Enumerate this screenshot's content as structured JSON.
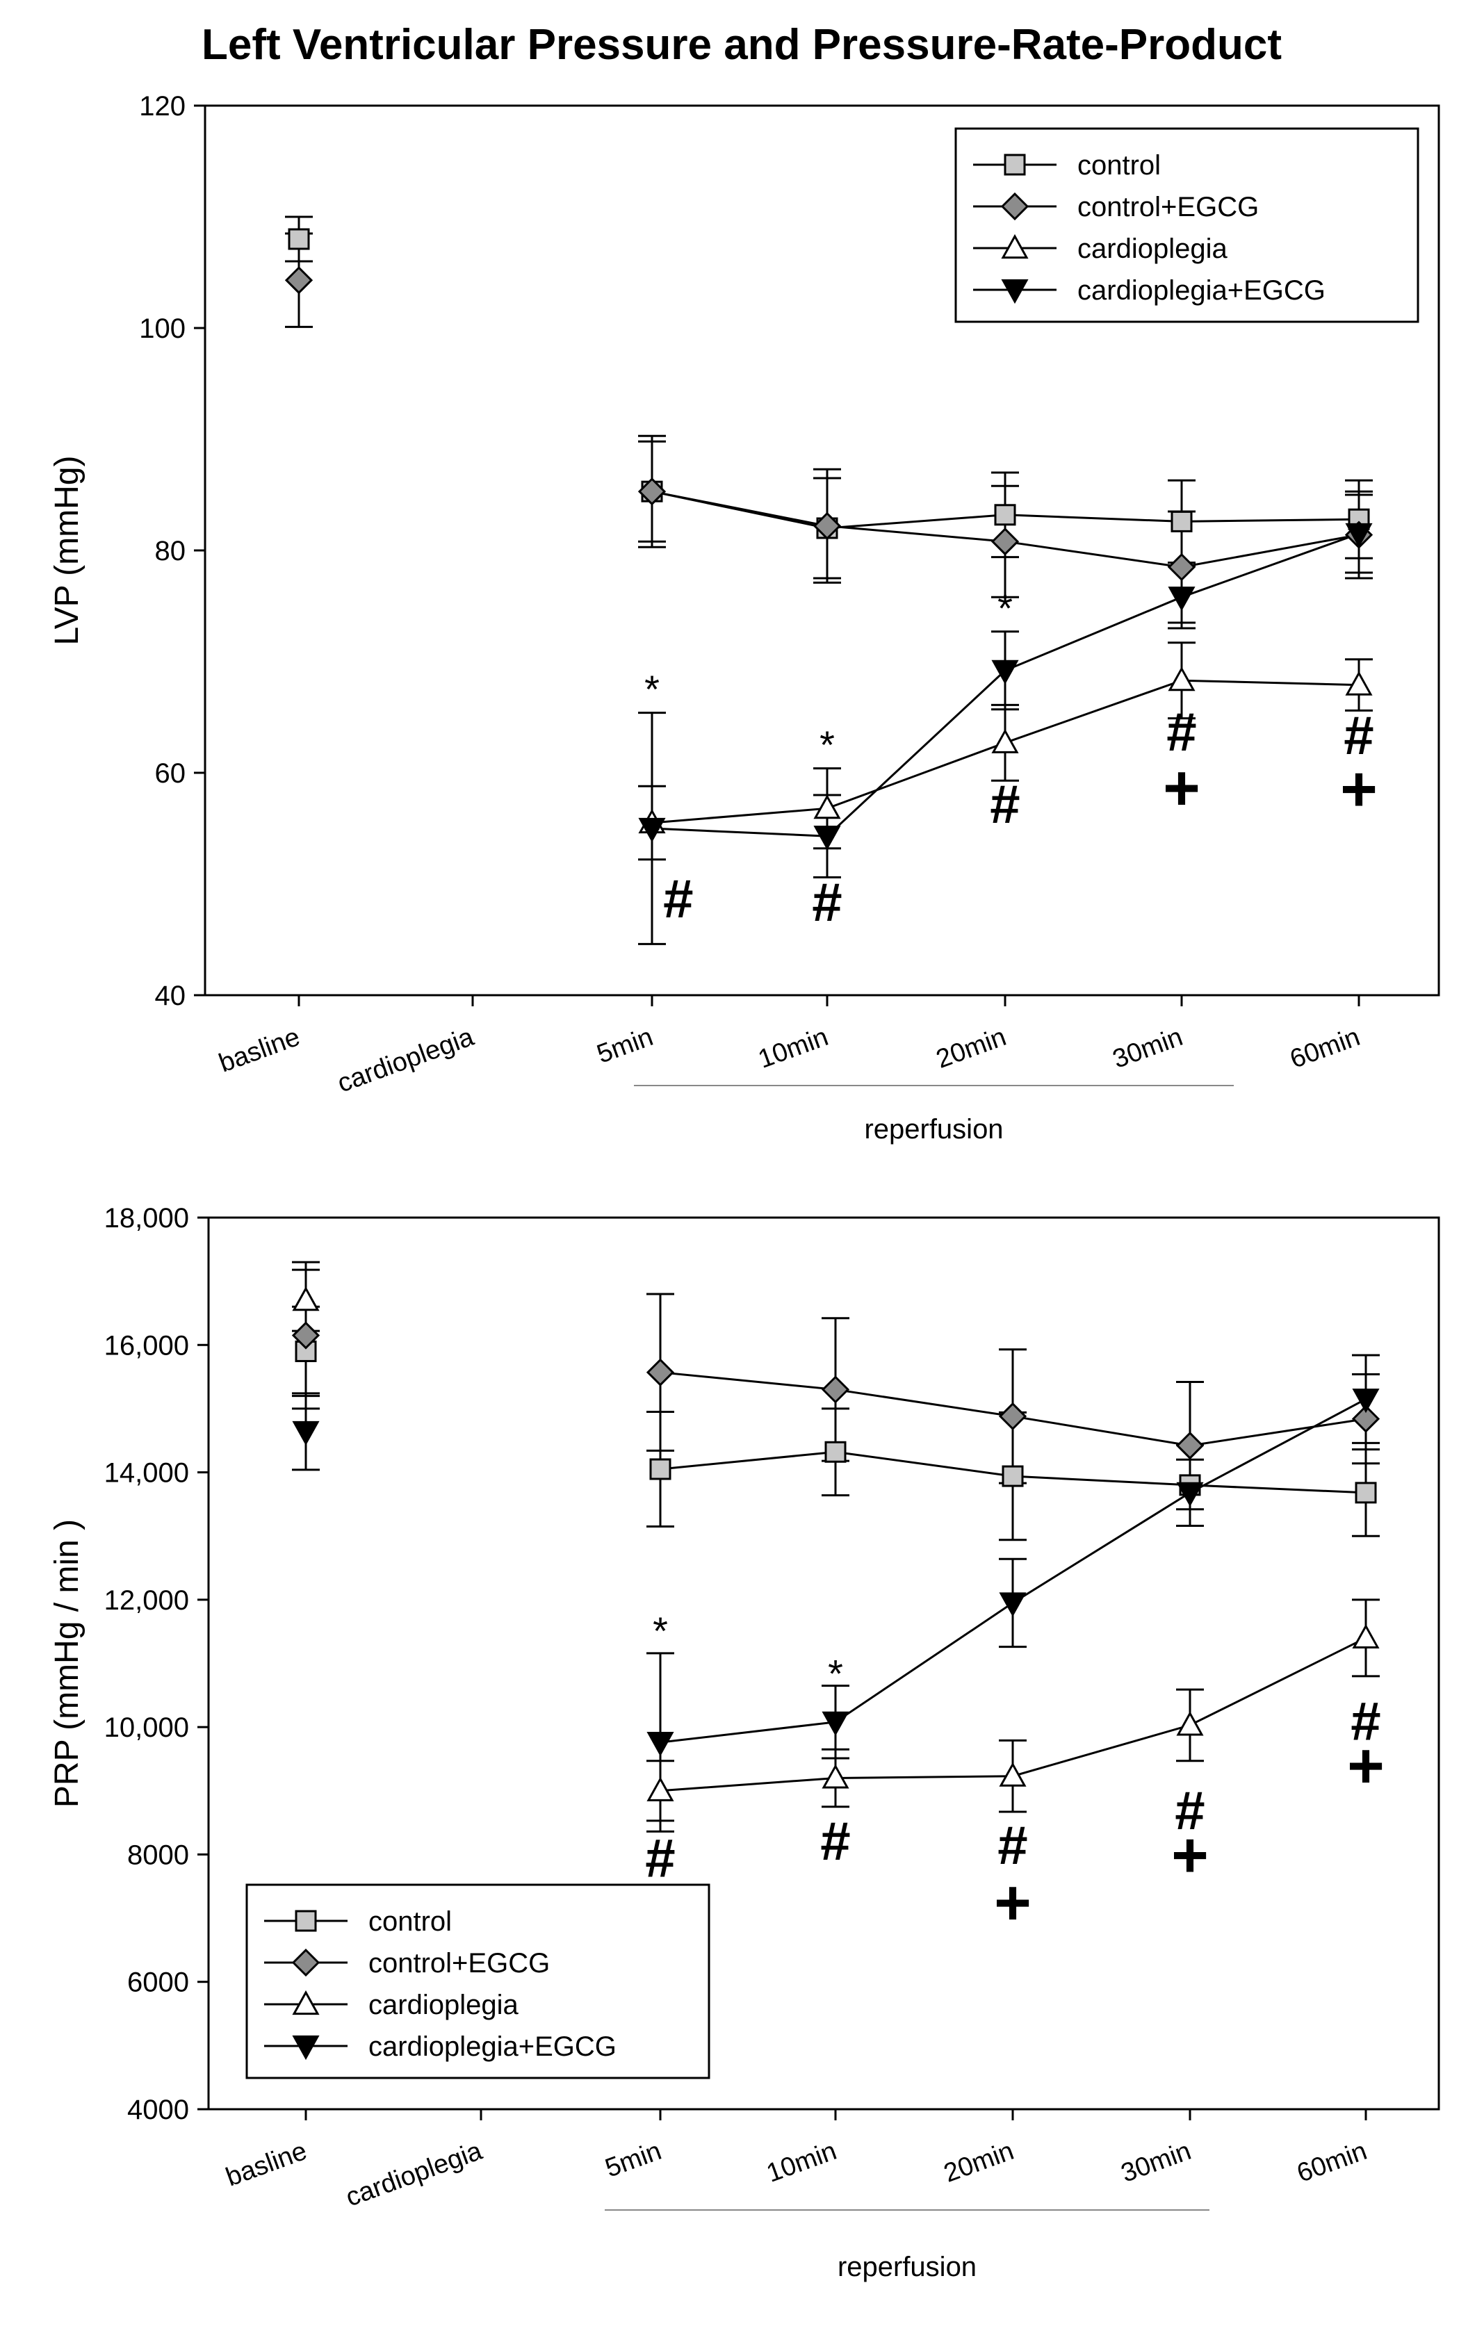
{
  "figure_title": "Left Ventricular Pressure and Pressure-Rate-Product",
  "chart_data": [
    {
      "type": "line",
      "id": "lvp",
      "ylabel": "LVP (mmHg)",
      "xlabel": "reperfusion",
      "ylim": [
        40,
        120
      ],
      "yticks": [
        40,
        60,
        80,
        100,
        120
      ],
      "ytick_labels": [
        "40",
        "60",
        "80",
        "100",
        "120"
      ],
      "categories": [
        "basline",
        "cardioplegia",
        "5min",
        "10min",
        "20min",
        "30min",
        "60min"
      ],
      "legend_position": "top-right",
      "series": [
        {
          "name": "control",
          "marker": "square",
          "values": [
            108,
            null,
            85.3,
            82,
            83.2,
            82.6,
            82.8
          ],
          "err": [
            2.0,
            null,
            4.5,
            4.5,
            3.8,
            3.7,
            3.5
          ]
        },
        {
          "name": "control+EGCG",
          "marker": "diamond",
          "values": [
            104.3,
            null,
            85.3,
            82.2,
            80.8,
            78.5,
            81.4
          ],
          "err": [
            4.2,
            null,
            5.0,
            5.1,
            5.0,
            5.0,
            3.9
          ]
        },
        {
          "name": "cardioplegia",
          "marker": "triangle-up",
          "values": [
            null,
            null,
            55.5,
            56.8,
            62.7,
            68.3,
            67.9
          ],
          "err": [
            null,
            null,
            3.3,
            3.6,
            3.4,
            3.4,
            2.3
          ]
        },
        {
          "name": "cardioplegia+EGCG",
          "marker": "triangle-down",
          "values": [
            null,
            null,
            55,
            54.3,
            69.2,
            75.8,
            81.5
          ],
          "err": [
            null,
            null,
            10.4,
            3.7,
            3.5,
            2.8,
            3.5
          ]
        }
      ],
      "annotations": [
        {
          "text": "*",
          "cat": 2,
          "y": 66.3,
          "kind": "star"
        },
        {
          "text": "*",
          "cat": 3,
          "y": 61.3,
          "kind": "star"
        },
        {
          "text": "*",
          "cat": 4,
          "y": 73.6,
          "kind": "star"
        },
        {
          "text": "#",
          "cat": 2.15,
          "y": 47,
          "kind": "hash"
        },
        {
          "text": "#",
          "cat": 3,
          "y": 46.7,
          "kind": "hash"
        },
        {
          "text": "#",
          "cat": 4,
          "y": 55.5,
          "kind": "hash"
        },
        {
          "text": "#",
          "cat": 5,
          "y": 62,
          "kind": "hash"
        },
        {
          "text": "+",
          "cat": 5,
          "y": 56.7,
          "kind": "plus"
        },
        {
          "text": "#",
          "cat": 6,
          "y": 61.7,
          "kind": "hash"
        },
        {
          "text": "+",
          "cat": 6,
          "y": 56.6,
          "kind": "plus"
        }
      ]
    },
    {
      "type": "line",
      "id": "prp",
      "ylabel": "PRP (mmHg / min )",
      "xlabel": "reperfusion",
      "ylim": [
        4000,
        18000
      ],
      "yticks": [
        4000,
        6000,
        8000,
        10000,
        12000,
        14000,
        16000,
        18000
      ],
      "ytick_labels": [
        "4000",
        "6000",
        "8000",
        "10,000",
        "12,000",
        "14,000",
        "16,000",
        "18,000"
      ],
      "categories": [
        "basline",
        "cardioplegia",
        "5min",
        "10min",
        "20min",
        "30min",
        "60min"
      ],
      "legend_position": "bottom-left",
      "series": [
        {
          "name": "control",
          "marker": "square",
          "values": [
            15900,
            null,
            14050,
            14320,
            13940,
            13800,
            13680
          ],
          "err": [
            700,
            null,
            900,
            680,
            1000,
            640,
            680
          ]
        },
        {
          "name": "control+EGCG",
          "marker": "diamond",
          "values": [
            16150,
            null,
            15570,
            15300,
            14880,
            14420,
            14840
          ],
          "err": [
            1150,
            null,
            1230,
            1120,
            1050,
            1000,
            700
          ]
        },
        {
          "name": "cardioplegia",
          "marker": "triangle-up",
          "values": [
            16700,
            null,
            9000,
            9200,
            9230,
            10030,
            11400
          ],
          "err": [
            480,
            null,
            470,
            450,
            560,
            560,
            600
          ]
        },
        {
          "name": "cardioplegia+EGCG",
          "marker": "triangle-down",
          "values": [
            14640,
            null,
            9760,
            10080,
            11950,
            13680,
            15150
          ],
          "err": [
            600,
            null,
            1400,
            570,
            690,
            520,
            690
          ]
        }
      ],
      "annotations": [
        {
          "text": "*",
          "cat": 2,
          "y": 11300,
          "kind": "star"
        },
        {
          "text": "*",
          "cat": 3,
          "y": 10630,
          "kind": "star"
        },
        {
          "text": "#",
          "cat": 2,
          "y": 7650,
          "kind": "hash"
        },
        {
          "text": "#",
          "cat": 3,
          "y": 7920,
          "kind": "hash"
        },
        {
          "text": "#",
          "cat": 4,
          "y": 7850,
          "kind": "hash"
        },
        {
          "text": "+",
          "cat": 4,
          "y": 6900,
          "kind": "plus"
        },
        {
          "text": "#",
          "cat": 5,
          "y": 8400,
          "kind": "hash"
        },
        {
          "text": "+",
          "cat": 5,
          "y": 7650,
          "kind": "plus"
        },
        {
          "text": "#",
          "cat": 6,
          "y": 9800,
          "kind": "hash"
        },
        {
          "text": "+",
          "cat": 6,
          "y": 9050,
          "kind": "plus"
        }
      ]
    }
  ]
}
